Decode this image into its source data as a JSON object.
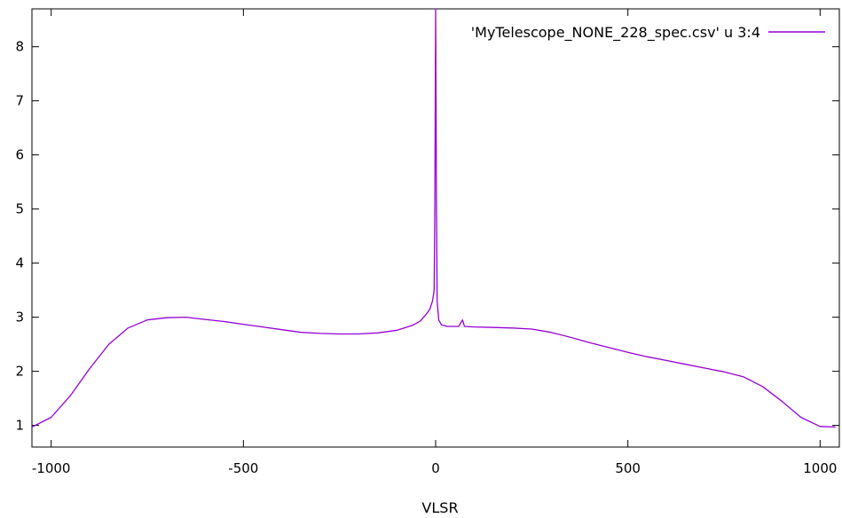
{
  "chart_data": {
    "type": "line",
    "title": "",
    "xlabel": "VLSR",
    "ylabel": "",
    "xlim": [
      -1050,
      1050
    ],
    "ylim": [
      0.6,
      8.7
    ],
    "xticks": [
      -1000,
      -500,
      0,
      500,
      1000
    ],
    "yticks": [
      1,
      2,
      3,
      4,
      5,
      6,
      7,
      8
    ],
    "grid": false,
    "legend_position": "top-right",
    "series": [
      {
        "name": "'MyTelescope_NONE_228_spec.csv' u 3:4",
        "color": "#9400d3",
        "x": [
          -1050,
          -1000,
          -950,
          -900,
          -850,
          -800,
          -750,
          -700,
          -650,
          -600,
          -550,
          -500,
          -450,
          -400,
          -350,
          -300,
          -250,
          -200,
          -150,
          -100,
          -60,
          -40,
          -25,
          -15,
          -8,
          -4,
          -2,
          0,
          2,
          4,
          8,
          15,
          30,
          60,
          70,
          75,
          100,
          150,
          200,
          250,
          300,
          350,
          400,
          450,
          500,
          550,
          600,
          650,
          700,
          750,
          800,
          850,
          900,
          950,
          1000,
          1040
        ],
        "y": [
          0.97,
          1.15,
          1.55,
          2.05,
          2.5,
          2.8,
          2.95,
          2.99,
          3.0,
          2.96,
          2.92,
          2.87,
          2.82,
          2.77,
          2.72,
          2.7,
          2.69,
          2.69,
          2.71,
          2.76,
          2.85,
          2.93,
          3.05,
          3.15,
          3.3,
          3.5,
          5.0,
          8.7,
          5.2,
          3.3,
          2.95,
          2.86,
          2.83,
          2.83,
          2.95,
          2.83,
          2.82,
          2.81,
          2.8,
          2.78,
          2.72,
          2.63,
          2.53,
          2.44,
          2.35,
          2.27,
          2.2,
          2.13,
          2.06,
          1.99,
          1.9,
          1.72,
          1.45,
          1.15,
          0.98,
          0.97
        ]
      }
    ]
  }
}
